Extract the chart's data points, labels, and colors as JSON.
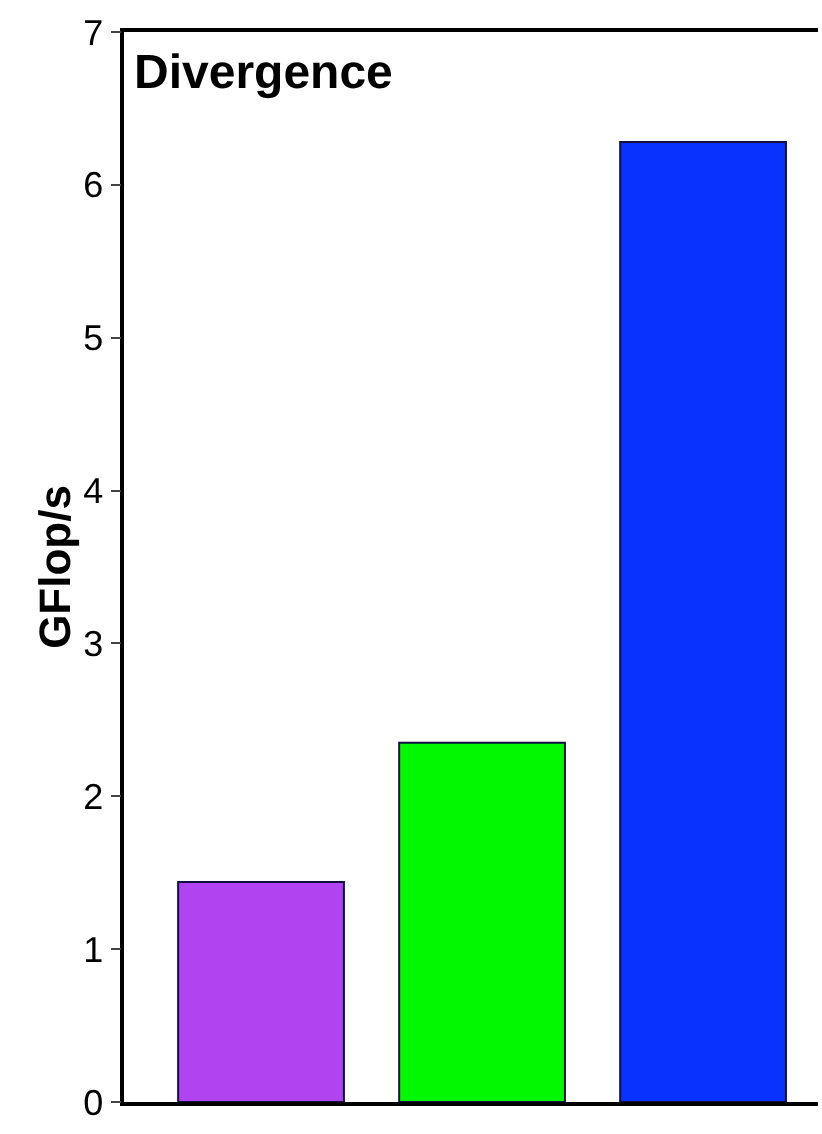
{
  "chart_data": {
    "type": "bar",
    "title": "Divergence",
    "ylabel": "GFlop/s",
    "categories": [
      null,
      null,
      null
    ],
    "values": [
      1.44,
      2.35,
      6.28
    ],
    "colors": [
      "#b044f0",
      "#00f800",
      "#0a32ff"
    ],
    "ylim": [
      0,
      7
    ],
    "yticks": [
      0,
      1,
      2,
      3,
      4,
      5,
      6,
      7
    ]
  }
}
